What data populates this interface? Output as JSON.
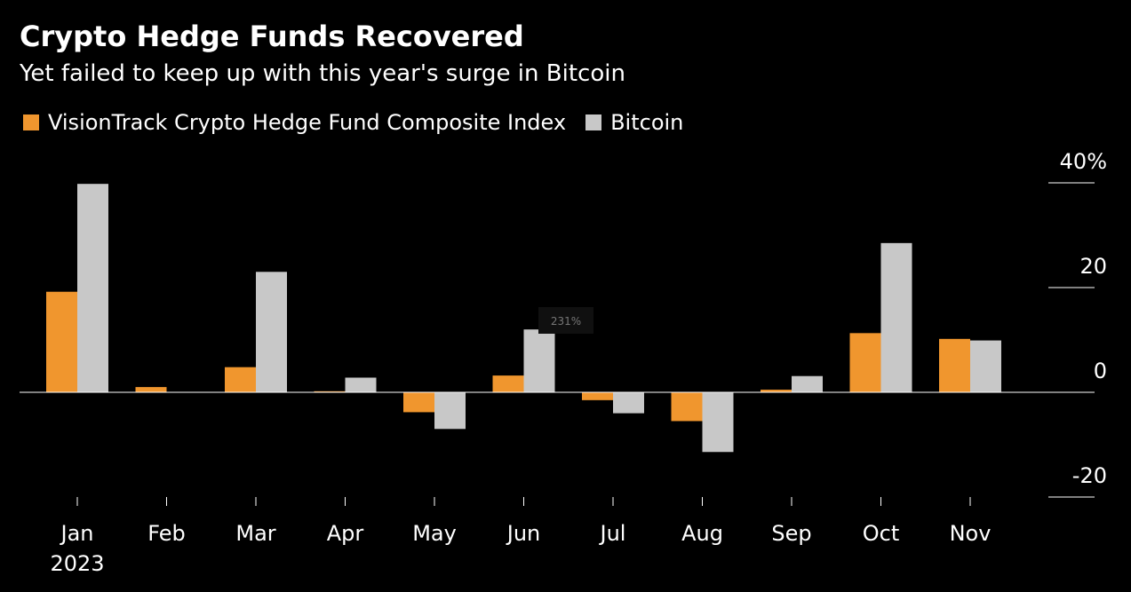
{
  "header": {
    "title": "Crypto Hedge Funds Recovered",
    "subtitle": "Yet failed to keep up with this year's surge in Bitcoin"
  },
  "colors": {
    "background": "#000000",
    "fund": "#f0962e",
    "bitcoin": "#c8c8c8",
    "axis": "#ffffff",
    "text": "#ffffff"
  },
  "overlay": {
    "badge_text": "231%"
  },
  "chart_data": {
    "type": "bar",
    "title": "Crypto Hedge Funds Recovered",
    "subtitle": "Yet failed to keep up with this year's surge in Bitcoin",
    "xlabel": "",
    "ylabel": "",
    "categories": [
      "Jan",
      "Feb",
      "Mar",
      "Apr",
      "May",
      "Jun",
      "Jul",
      "Aug",
      "Sep",
      "Oct",
      "Nov"
    ],
    "year_label": "2023",
    "series": [
      {
        "name": "VisionTrack Crypto Hedge Fund Composite Index",
        "color": "#f0962e",
        "values": [
          19.2,
          1.0,
          4.8,
          0.2,
          -3.8,
          3.2,
          -1.5,
          -5.5,
          0.5,
          11.3,
          10.2
        ]
      },
      {
        "name": "Bitcoin",
        "color": "#c8c8c8",
        "values": [
          39.8,
          0.0,
          23.0,
          2.8,
          -7.0,
          12.0,
          -4.0,
          -11.4,
          3.1,
          28.5,
          9.9
        ]
      }
    ],
    "ylim": [
      -20,
      40
    ],
    "yticks": [
      40,
      20,
      0,
      -20
    ],
    "ytick_labels": [
      "40%",
      "20",
      "0",
      "-20"
    ],
    "legend_position": "top-left",
    "y_axis_position": "right",
    "grid": false
  }
}
